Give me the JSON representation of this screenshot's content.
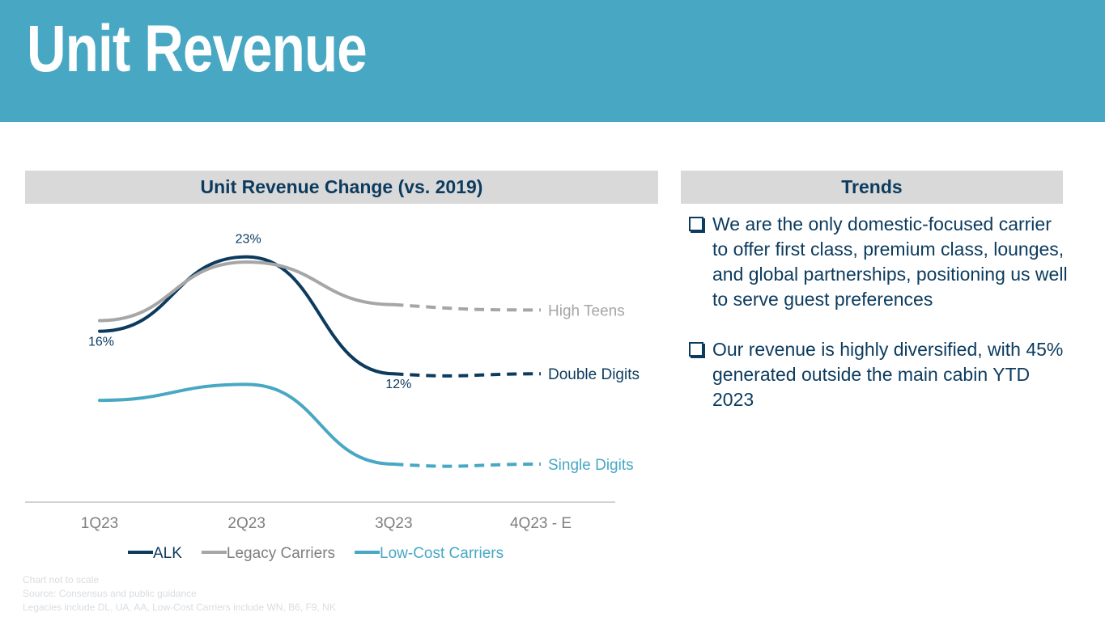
{
  "header": {
    "title": "Unit Revenue"
  },
  "chart_data": {
    "type": "line",
    "title": "Unit Revenue Change (vs. 2019)",
    "categories": [
      "1Q23",
      "2Q23",
      "3Q23",
      "4Q23 - E"
    ],
    "note": "Chart not to scale",
    "series": [
      {
        "name": "ALK",
        "color": "#0c3b5e",
        "values": [
          16,
          23,
          12,
          12
        ],
        "forecast_from": 2,
        "data_labels": [
          "16%",
          "23%",
          "12%",
          ""
        ],
        "end_label": "Double Digits"
      },
      {
        "name": "Legacy Carriers",
        "color": "#a6a6a6",
        "values": [
          17,
          22.5,
          18.5,
          18
        ],
        "forecast_from": 2,
        "data_labels": [
          "",
          "",
          "",
          ""
        ],
        "end_label": "High Teens"
      },
      {
        "name": "Low-Cost Carriers",
        "color": "#48a8c4",
        "values": [
          9.5,
          11,
          3.5,
          3.5
        ],
        "forecast_from": 2,
        "data_labels": [
          "",
          "",
          "",
          ""
        ],
        "end_label": "Single Digits"
      }
    ],
    "ylim": [
      0,
      27
    ],
    "legend_position": "bottom"
  },
  "trends": {
    "title": "Trends",
    "items": [
      "We are the only domestic-focused carrier to offer first class, premium class, lounges, and global partnerships, positioning us well to serve guest preferences",
      "Our revenue is highly diversified, with 45% generated outside the main cabin YTD 2023"
    ]
  },
  "footnotes": [
    "Chart not to scale",
    "Source: Consensus and public guidance",
    "Legacies include DL, UA, AA, Low-Cost Carriers include WN, B6, F9, NK"
  ]
}
